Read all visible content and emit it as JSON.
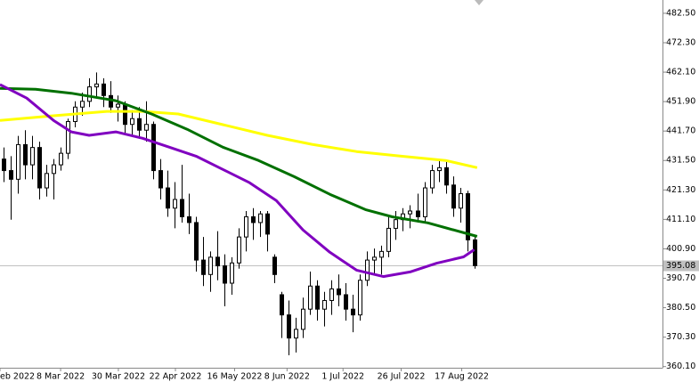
{
  "chart_data": {
    "type": "candlestick",
    "ylim": [
      359.7,
      487.1
    ],
    "yticks": [
      {
        "value": 482.5,
        "label": "482.50"
      },
      {
        "value": 472.3,
        "label": "472.30"
      },
      {
        "value": 462.1,
        "label": "462.10"
      },
      {
        "value": 451.9,
        "label": "451.90"
      },
      {
        "value": 441.7,
        "label": "441.70"
      },
      {
        "value": 431.5,
        "label": "431.50"
      },
      {
        "value": 421.3,
        "label": "421.30"
      },
      {
        "value": 411.1,
        "label": "411.10"
      },
      {
        "value": 400.9,
        "label": "400.90"
      },
      {
        "value": 390.7,
        "label": "390.70"
      },
      {
        "value": 380.5,
        "label": "380.50"
      },
      {
        "value": 370.3,
        "label": "370.30"
      },
      {
        "value": 360.1,
        "label": "360.10"
      }
    ],
    "xlim": [
      -0.5,
      92.4
    ],
    "xticks": [
      {
        "value": -0.5,
        "label": "eb 2022"
      },
      {
        "value": 8,
        "label": "8 Mar 2022"
      },
      {
        "value": 16.1,
        "label": "30 Mar 2022"
      },
      {
        "value": 24.1,
        "label": "22 Apr 2022"
      },
      {
        "value": 32.4,
        "label": "16 May 2022"
      },
      {
        "value": 39.75,
        "label": "8 Jun 2022"
      },
      {
        "value": 47.6,
        "label": "1 Jul 2022"
      },
      {
        "value": 55.75,
        "label": "26 Jul 2022"
      },
      {
        "value": 64.25,
        "label": "17 Aug 2022"
      }
    ],
    "open": [
      432,
      428,
      425,
      437,
      430,
      436,
      422,
      427,
      430,
      434,
      445,
      450,
      452,
      457,
      458,
      454,
      450,
      451,
      444,
      446,
      442,
      444,
      428,
      422,
      415,
      418,
      412,
      410,
      397,
      392,
      398,
      395,
      389,
      396,
      405,
      412,
      410,
      413,
      398,
      385,
      378,
      370,
      373,
      380,
      388,
      380,
      383,
      387,
      385,
      380,
      378,
      390,
      397,
      398,
      400,
      408,
      411,
      413,
      414,
      412,
      422,
      428,
      429,
      423,
      415,
      420,
      404
    ],
    "high": [
      436,
      433,
      440,
      442,
      440,
      438,
      430,
      432,
      436,
      446,
      452,
      455,
      460,
      462,
      460,
      459,
      454,
      452,
      449,
      450,
      452,
      445,
      432,
      428,
      424,
      430,
      420,
      412,
      405,
      400,
      407,
      399,
      398,
      408,
      414,
      415,
      414,
      414,
      399,
      386,
      383,
      377,
      384,
      393,
      390,
      386,
      390,
      392,
      389,
      385,
      392,
      400,
      401,
      402,
      412,
      414,
      415,
      416,
      420,
      424,
      430,
      432,
      431,
      426,
      422,
      421,
      405
    ],
    "low": [
      424,
      411,
      420,
      425,
      425,
      418,
      419,
      418,
      428,
      432,
      443,
      447,
      450,
      453,
      450,
      448,
      445,
      441,
      440,
      439,
      438,
      425,
      418,
      412,
      408,
      410,
      406,
      393,
      388,
      386,
      390,
      381,
      385,
      394,
      400,
      404,
      405,
      400,
      389,
      370,
      364,
      365,
      370,
      378,
      376,
      374,
      378,
      381,
      376,
      372,
      376,
      388,
      392,
      392,
      398,
      404,
      407,
      408,
      410,
      410,
      420,
      424,
      420,
      412,
      410,
      400,
      394
    ],
    "close": [
      428,
      425,
      437,
      430,
      436,
      422,
      427,
      430,
      434,
      445,
      450,
      452,
      457,
      458,
      454,
      450,
      451,
      444,
      446,
      442,
      444,
      428,
      422,
      415,
      418,
      412,
      410,
      397,
      392,
      398,
      395,
      389,
      396,
      405,
      412,
      410,
      413,
      406,
      392,
      378,
      370,
      373,
      380,
      388,
      380,
      383,
      387,
      385,
      380,
      378,
      390,
      397,
      398,
      400,
      408,
      411,
      413,
      414,
      412,
      422,
      428,
      429,
      423,
      415,
      420,
      404,
      395.08
    ],
    "up_color": "#ffffff",
    "down_color": "#000000",
    "wick_color": "#000000",
    "overlays": [
      {
        "type": "line",
        "color": "#ffff00",
        "x": [
          -0.5,
          7,
          14.5,
          19.5,
          24.5,
          30.75,
          37,
          43.25,
          49.5,
          55.75,
          62,
          66.4
        ],
        "values": [
          445.4,
          447,
          448.5,
          448.5,
          447.6,
          443.9,
          440.2,
          437.1,
          434.6,
          433,
          431.5,
          429
        ]
      },
      {
        "type": "line",
        "color": "#007000",
        "x": [
          -0.5,
          4.5,
          9.5,
          15.75,
          20.75,
          25.75,
          30.75,
          35.75,
          40.75,
          45.75,
          50.75,
          54.5,
          59.5,
          66.4
        ],
        "values": [
          456.5,
          456.2,
          454.8,
          452.2,
          447.6,
          442.3,
          436.1,
          431.5,
          425.9,
          419.8,
          414.5,
          412,
          409.9,
          405.2
        ]
      },
      {
        "type": "line",
        "color": "#8000c0",
        "x": [
          -0.5,
          3.25,
          7,
          9.5,
          12,
          15.75,
          19.5,
          23.25,
          27,
          30.75,
          34.5,
          38.25,
          42,
          45.75,
          49.5,
          53.25,
          57,
          60.75,
          64.5,
          66
        ],
        "values": [
          457.8,
          453.1,
          445.4,
          441.4,
          440.2,
          441.4,
          439.2,
          436.1,
          433,
          428.4,
          423.8,
          417.6,
          407.4,
          399.7,
          393.5,
          391.3,
          392.9,
          395.9,
          398.1,
          400.6
        ]
      }
    ],
    "last_price": {
      "value": 395.08,
      "label": "395.08"
    }
  }
}
